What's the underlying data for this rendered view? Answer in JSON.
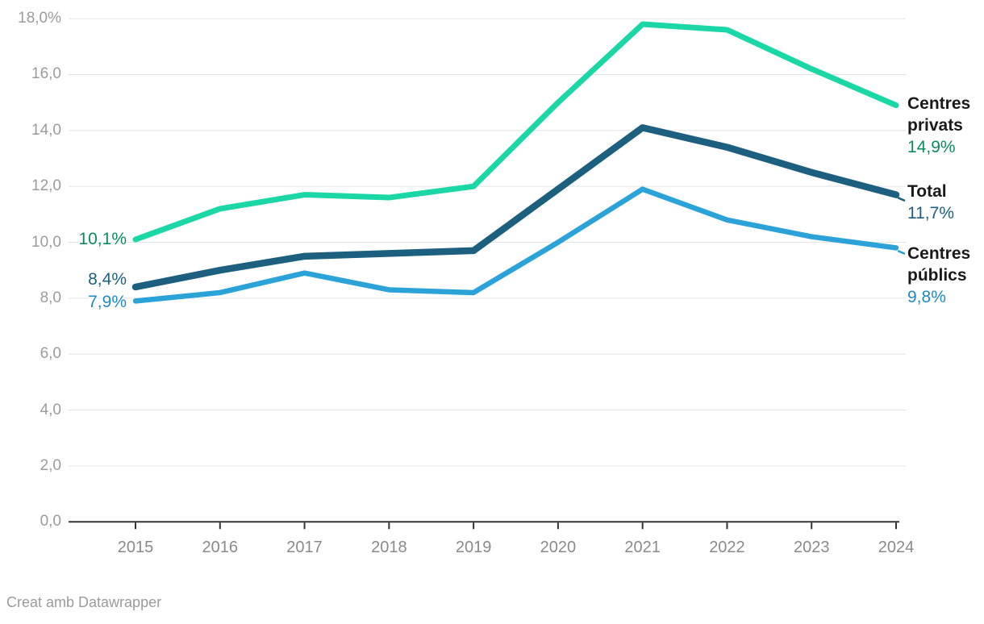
{
  "chart_data": {
    "type": "line",
    "x": [
      "2015",
      "2016",
      "2017",
      "2018",
      "2019",
      "2020",
      "2021",
      "2022",
      "2023",
      "2024"
    ],
    "series": [
      {
        "name": "Centres privats",
        "values": [
          10.1,
          11.2,
          11.7,
          11.6,
          12.0,
          15.0,
          17.8,
          17.6,
          16.2,
          14.9
        ],
        "start_label": "10,1%",
        "end_label": "14,9%",
        "color": "#1bd7a5",
        "label_color": "#0b8a5e"
      },
      {
        "name": "Total",
        "values": [
          8.4,
          9.0,
          9.5,
          9.6,
          9.7,
          11.9,
          14.1,
          13.4,
          12.5,
          11.7
        ],
        "start_label": "8,4%",
        "end_label": "11,7%",
        "color": "#1d5f7e",
        "label_color": "#1d5f7e"
      },
      {
        "name": "Centres públics",
        "values": [
          7.9,
          8.2,
          8.9,
          8.3,
          8.2,
          10.0,
          11.9,
          10.8,
          10.2,
          9.8
        ],
        "start_label": "7,9%",
        "end_label": "9,8%",
        "color": "#2ba3d8",
        "label_color": "#1e8ac0"
      }
    ],
    "ylim": [
      0,
      18
    ],
    "yticks": [
      {
        "value": 18,
        "label": "18,0%"
      },
      {
        "value": 16,
        "label": "16,0"
      },
      {
        "value": 14,
        "label": "14,0"
      },
      {
        "value": 12,
        "label": "12,0"
      },
      {
        "value": 10,
        "label": "10,0"
      },
      {
        "value": 8,
        "label": "8,0"
      },
      {
        "value": 6,
        "label": "6,0"
      },
      {
        "value": 4,
        "label": "4,0"
      },
      {
        "value": 2,
        "label": "2,0"
      },
      {
        "value": 0,
        "label": "0,0"
      }
    ],
    "grid": true,
    "legend_position": "right",
    "axis_color": "#333333",
    "grid_color": "#e3e3e3"
  },
  "footer": {
    "credit": "Creat amb Datawrapper"
  }
}
